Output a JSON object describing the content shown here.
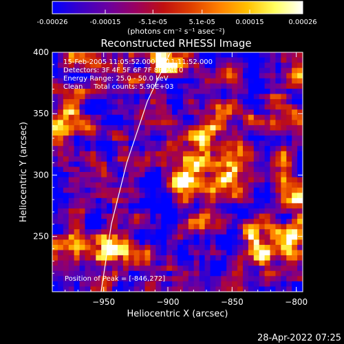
{
  "chart_data": {
    "type": "heatmap",
    "colorbar": {
      "tick_labels": [
        "-0.00026",
        "-0.00015",
        "-5.1e-05",
        "5.1e-05",
        "0.00015",
        "0.00026"
      ],
      "tick_values": [
        -0.00026,
        -0.00015,
        -5.1e-05,
        5.1e-05,
        0.00015,
        0.00026
      ],
      "range": [
        -0.00026,
        0.00026
      ],
      "units_label": "(photons cm⁻² s⁻¹ asec⁻²)",
      "colormap": [
        "#0000ff",
        "#3a00c8",
        "#6a00a0",
        "#9a0060",
        "#c01010",
        "#e04000",
        "#ff8000",
        "#ffc000",
        "#ffff60",
        "#ffffff"
      ]
    },
    "title": "Reconstructed RHESSI Image",
    "info_lines": [
      "15-Feb-2005 11:05:52.000 to 11:11:52.000",
      "Detectors: 3F 4F 5F 6F 7F 8F, Att 0",
      "Energy Range: 25.0 - 50.0 keV",
      "Clean     Total counts: 5.90E+03"
    ],
    "peak_label": "Position of Peak = [-846,272]",
    "peak_position": [
      -846,
      272
    ],
    "xlabel": "Heliocentric X (arcsec)",
    "ylabel": "Heliocentric Y (arcsec)",
    "xlim": [
      -990,
      -795
    ],
    "ylim": [
      205,
      400
    ],
    "x_ticks": [
      -950,
      -900,
      -850,
      -800
    ],
    "x_tick_labels": [
      "−950",
      "−900",
      "−850",
      "−800"
    ],
    "y_ticks": [
      250,
      300,
      350,
      400
    ],
    "y_tick_labels": [
      "250",
      "300",
      "350",
      "400"
    ],
    "limb_curve": [
      [
        -952,
        205
      ],
      [
        -944,
        260
      ],
      [
        -932,
        310
      ],
      [
        -916,
        360
      ],
      [
        -898,
        400
      ]
    ],
    "bright_regions": [
      {
        "x": -970,
        "y": 250,
        "level": 0.85
      },
      {
        "x": -945,
        "y": 240,
        "level": 0.95
      },
      {
        "x": -830,
        "y": 240,
        "level": 1.0
      },
      {
        "x": -805,
        "y": 250,
        "level": 1.0
      },
      {
        "x": -800,
        "y": 285,
        "level": 0.9
      },
      {
        "x": -850,
        "y": 300,
        "level": 0.85
      },
      {
        "x": -880,
        "y": 295,
        "level": 0.85
      },
      {
        "x": -870,
        "y": 320,
        "level": 0.8
      },
      {
        "x": -900,
        "y": 395,
        "level": 1.0
      },
      {
        "x": -985,
        "y": 345,
        "level": 0.85
      }
    ]
  },
  "timestamp": "28-Apr-2022 07:25"
}
